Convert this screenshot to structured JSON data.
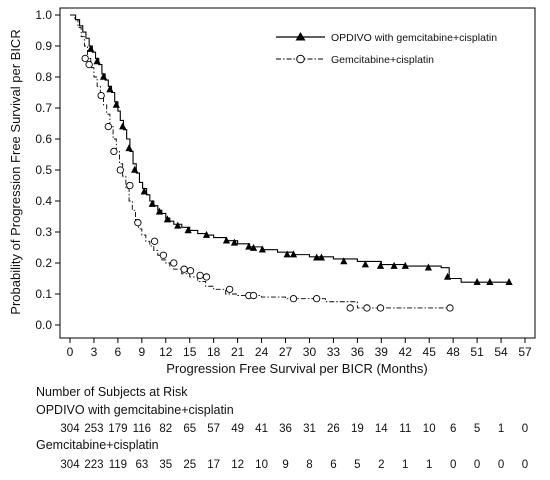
{
  "chart_data": {
    "type": "line",
    "subtype": "kaplan-meier",
    "title": "",
    "xlabel": "Progression Free Survival per BICR (Months)",
    "ylabel": "Probability of Progression Free Survival per BICR",
    "xlim": [
      0,
      57
    ],
    "ylim": [
      0,
      1.0
    ],
    "x_ticks": [
      0,
      3,
      6,
      9,
      12,
      15,
      18,
      21,
      24,
      27,
      30,
      33,
      36,
      39,
      42,
      45,
      48,
      51,
      54,
      57
    ],
    "y_ticks": [
      "0.0",
      "0.1",
      "0.2",
      "0.3",
      "0.4",
      "0.5",
      "0.6",
      "0.7",
      "0.8",
      "0.9",
      "1.0"
    ],
    "grid": false,
    "legend_position": "top-right",
    "series": [
      {
        "name": "OPDIVO with gemcitabine+cisplatin",
        "line_style": "solid",
        "marker": "filled-triangle",
        "points": [
          [
            0,
            1.0
          ],
          [
            0.7,
            0.985
          ],
          [
            1.2,
            0.965
          ],
          [
            1.6,
            0.945
          ],
          [
            2.0,
            0.925
          ],
          [
            2.4,
            0.9
          ],
          [
            2.8,
            0.88
          ],
          [
            3.2,
            0.86
          ],
          [
            3.6,
            0.84
          ],
          [
            4.0,
            0.81
          ],
          [
            4.4,
            0.79
          ],
          [
            4.8,
            0.77
          ],
          [
            5.2,
            0.75
          ],
          [
            5.6,
            0.72
          ],
          [
            6.0,
            0.69
          ],
          [
            6.3,
            0.66
          ],
          [
            6.7,
            0.63
          ],
          [
            7.1,
            0.6
          ],
          [
            7.5,
            0.56
          ],
          [
            7.9,
            0.52
          ],
          [
            8.3,
            0.49
          ],
          [
            8.7,
            0.46
          ],
          [
            9.1,
            0.44
          ],
          [
            9.6,
            0.42
          ],
          [
            10.0,
            0.4
          ],
          [
            10.5,
            0.385
          ],
          [
            11.0,
            0.37
          ],
          [
            11.5,
            0.36
          ],
          [
            12.0,
            0.345
          ],
          [
            12.5,
            0.335
          ],
          [
            13.0,
            0.325
          ],
          [
            14.0,
            0.315
          ],
          [
            15.0,
            0.305
          ],
          [
            16.0,
            0.295
          ],
          [
            17.0,
            0.29
          ],
          [
            18.0,
            0.282
          ],
          [
            19.5,
            0.272
          ],
          [
            21.0,
            0.262
          ],
          [
            22.5,
            0.252
          ],
          [
            24.0,
            0.243
          ],
          [
            26.0,
            0.235
          ],
          [
            28.0,
            0.227
          ],
          [
            30.0,
            0.22
          ],
          [
            33.0,
            0.213
          ],
          [
            36.0,
            0.205
          ],
          [
            39.0,
            0.195
          ],
          [
            42.0,
            0.19
          ],
          [
            46.5,
            0.185
          ],
          [
            47.5,
            0.15
          ],
          [
            49.0,
            0.138
          ],
          [
            55.0,
            0.138
          ]
        ],
        "censor_marks": [
          [
            2.6,
            0.89
          ],
          [
            3.4,
            0.85
          ],
          [
            4.2,
            0.8
          ],
          [
            5.0,
            0.76
          ],
          [
            5.8,
            0.71
          ],
          [
            6.6,
            0.64
          ],
          [
            7.4,
            0.57
          ],
          [
            8.1,
            0.5
          ],
          [
            9.3,
            0.43
          ],
          [
            10.3,
            0.39
          ],
          [
            11.2,
            0.365
          ],
          [
            12.2,
            0.34
          ],
          [
            13.5,
            0.32
          ],
          [
            14.8,
            0.305
          ],
          [
            17.1,
            0.29
          ],
          [
            19.6,
            0.272
          ],
          [
            20.6,
            0.265
          ],
          [
            22.4,
            0.252
          ],
          [
            23.0,
            0.248
          ],
          [
            24.1,
            0.243
          ],
          [
            27.2,
            0.227
          ],
          [
            28.0,
            0.227
          ],
          [
            30.9,
            0.217
          ],
          [
            31.5,
            0.217
          ],
          [
            34.3,
            0.205
          ],
          [
            37.0,
            0.195
          ],
          [
            38.9,
            0.19
          ],
          [
            40.6,
            0.19
          ],
          [
            42.0,
            0.19
          ],
          [
            44.9,
            0.185
          ],
          [
            47.3,
            0.155
          ],
          [
            51.0,
            0.138
          ],
          [
            52.6,
            0.138
          ],
          [
            55.0,
            0.138
          ]
        ]
      },
      {
        "name": "Gemcitabine+cisplatin",
        "line_style": "dash-dot",
        "marker": "open-circle",
        "points": [
          [
            0,
            1.0
          ],
          [
            0.6,
            0.985
          ],
          [
            1.0,
            0.96
          ],
          [
            1.4,
            0.93
          ],
          [
            1.8,
            0.9
          ],
          [
            2.2,
            0.86
          ],
          [
            2.6,
            0.83
          ],
          [
            3.0,
            0.8
          ],
          [
            3.4,
            0.77
          ],
          [
            3.8,
            0.74
          ],
          [
            4.2,
            0.71
          ],
          [
            4.6,
            0.68
          ],
          [
            5.0,
            0.64
          ],
          [
            5.4,
            0.6
          ],
          [
            5.8,
            0.56
          ],
          [
            6.2,
            0.52
          ],
          [
            6.6,
            0.48
          ],
          [
            7.0,
            0.44
          ],
          [
            7.4,
            0.4
          ],
          [
            7.8,
            0.37
          ],
          [
            8.2,
            0.34
          ],
          [
            8.6,
            0.31
          ],
          [
            9.0,
            0.29
          ],
          [
            9.5,
            0.27
          ],
          [
            10.0,
            0.255
          ],
          [
            10.5,
            0.24
          ],
          [
            11.0,
            0.225
          ],
          [
            11.5,
            0.21
          ],
          [
            12.0,
            0.2
          ],
          [
            12.5,
            0.19
          ],
          [
            13.0,
            0.18
          ],
          [
            14.0,
            0.165
          ],
          [
            15.0,
            0.155
          ],
          [
            16.0,
            0.14
          ],
          [
            17.0,
            0.125
          ],
          [
            18.0,
            0.115
          ],
          [
            19.5,
            0.1
          ],
          [
            21.0,
            0.095
          ],
          [
            24.0,
            0.09
          ],
          [
            27.0,
            0.085
          ],
          [
            32.0,
            0.075
          ],
          [
            36.0,
            0.055
          ],
          [
            40.0,
            0.055
          ],
          [
            47.5,
            0.055
          ]
        ],
        "censor_marks": [
          [
            1.9,
            0.86
          ],
          [
            2.4,
            0.84
          ],
          [
            3.9,
            0.74
          ],
          [
            4.8,
            0.64
          ],
          [
            5.5,
            0.56
          ],
          [
            6.3,
            0.5
          ],
          [
            7.5,
            0.45
          ],
          [
            8.5,
            0.33
          ],
          [
            10.6,
            0.27
          ],
          [
            11.7,
            0.225
          ],
          [
            13.0,
            0.2
          ],
          [
            14.3,
            0.18
          ],
          [
            15.1,
            0.175
          ],
          [
            16.3,
            0.16
          ],
          [
            17.1,
            0.155
          ],
          [
            20.0,
            0.115
          ],
          [
            22.4,
            0.095
          ],
          [
            23.0,
            0.095
          ],
          [
            28.0,
            0.085
          ],
          [
            30.9,
            0.085
          ],
          [
            35.1,
            0.055
          ],
          [
            37.2,
            0.055
          ],
          [
            38.9,
            0.055
          ],
          [
            47.6,
            0.055
          ]
        ]
      }
    ],
    "risk_table": {
      "title": "Number of Subjects at Risk",
      "rows": [
        {
          "label": "OPDIVO with gemcitabine+cisplatin",
          "values": [
            "304",
            "253",
            "179",
            "116",
            "82",
            "65",
            "57",
            "49",
            "41",
            "36",
            "31",
            "26",
            "19",
            "14",
            "11",
            "10",
            "6",
            "5",
            "1",
            "0"
          ]
        },
        {
          "label": "Gemcitabine+cisplatin",
          "values": [
            "304",
            "223",
            "119",
            "63",
            "35",
            "25",
            "17",
            "12",
            "10",
            "9",
            "8",
            "6",
            "5",
            "2",
            "1",
            "1",
            "0",
            "0",
            "0",
            "0"
          ]
        }
      ]
    }
  }
}
